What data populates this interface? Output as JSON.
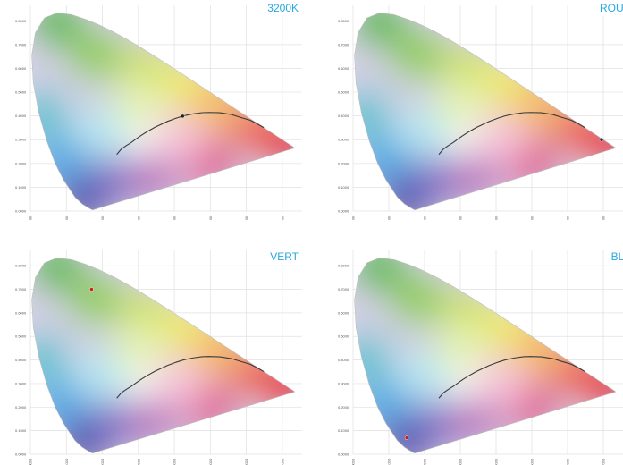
{
  "chart_data": [
    {
      "type": "scatter",
      "title": "3200K",
      "xlim": [
        0.0,
        0.75
      ],
      "ylim": [
        0.0,
        0.85
      ],
      "x_ticks": [
        "0.0000",
        "0.1000",
        "0.2000",
        "0.3000",
        "0.4000",
        "0.5000",
        "0.6000",
        "0.7000"
      ],
      "y_ticks": [
        "0.0000",
        "0.1000",
        "0.2000",
        "0.3000",
        "0.4000",
        "0.5000",
        "0.6000",
        "0.7000",
        "0.8000"
      ],
      "grid": true,
      "marker": {
        "x": 0.423,
        "y": 0.399,
        "color": "#222222"
      }
    },
    {
      "type": "scatter",
      "title": "ROUGE",
      "xlim": [
        0.0,
        0.75
      ],
      "ylim": [
        0.0,
        0.85
      ],
      "x_ticks": [
        "0.0000",
        "0.1000",
        "0.2000",
        "0.3000",
        "0.4000",
        "0.5000",
        "0.6000",
        "0.7000"
      ],
      "y_ticks": [
        "0.0000",
        "0.1000",
        "0.2000",
        "0.3000",
        "0.4000",
        "0.5000",
        "0.6000",
        "0.7000",
        "0.8000"
      ],
      "grid": true,
      "marker": {
        "x": 0.695,
        "y": 0.3,
        "color": "#222222"
      }
    },
    {
      "type": "scatter",
      "title": "VERT",
      "xlim": [
        0.0,
        0.75
      ],
      "ylim": [
        0.0,
        0.85
      ],
      "x_ticks": [
        "0.0000",
        "0.1000",
        "0.2000",
        "0.3000",
        "0.4000",
        "0.5000",
        "0.6000",
        "0.7000"
      ],
      "y_ticks": [
        "0.0000",
        "0.1000",
        "0.2000",
        "0.3000",
        "0.4000",
        "0.5000",
        "0.6000",
        "0.7000",
        "0.8000"
      ],
      "grid": true,
      "marker": {
        "x": 0.17,
        "y": 0.7,
        "color": "#d01c1c"
      }
    },
    {
      "type": "scatter",
      "title": "BLEU",
      "xlim": [
        0.0,
        0.75
      ],
      "ylim": [
        0.0,
        0.85
      ],
      "x_ticks": [
        "0.0000",
        "0.1000",
        "0.2000",
        "0.3000",
        "0.4000",
        "0.5000",
        "0.6000",
        "0.7000"
      ],
      "y_ticks": [
        "0.0000",
        "0.1000",
        "0.2000",
        "0.3000",
        "0.4000",
        "0.5000",
        "0.6000",
        "0.7000",
        "0.8000"
      ],
      "grid": true,
      "marker": {
        "x": 0.15,
        "y": 0.07,
        "color": "#d01c1c"
      }
    }
  ],
  "spectral_locus": [
    [
      0.1741,
      0.005
    ],
    [
      0.1738,
      0.0049
    ],
    [
      0.1733,
      0.0048
    ],
    [
      0.1726,
      0.0048
    ],
    [
      0.1714,
      0.0051
    ],
    [
      0.1689,
      0.0069
    ],
    [
      0.1644,
      0.0109
    ],
    [
      0.1566,
      0.0177
    ],
    [
      0.144,
      0.0297
    ],
    [
      0.1241,
      0.0578
    ],
    [
      0.0913,
      0.1327
    ],
    [
      0.0687,
      0.2007
    ],
    [
      0.0454,
      0.295
    ],
    [
      0.0235,
      0.4127
    ],
    [
      0.0082,
      0.5384
    ],
    [
      0.0039,
      0.6548
    ],
    [
      0.0139,
      0.7502
    ],
    [
      0.0389,
      0.812
    ],
    [
      0.0743,
      0.8338
    ],
    [
      0.1142,
      0.8262
    ],
    [
      0.1547,
      0.8059
    ],
    [
      0.1929,
      0.7816
    ],
    [
      0.2296,
      0.7543
    ],
    [
      0.2658,
      0.7243
    ],
    [
      0.3016,
      0.6923
    ],
    [
      0.3373,
      0.6589
    ],
    [
      0.3731,
      0.6245
    ],
    [
      0.4087,
      0.5896
    ],
    [
      0.4441,
      0.5547
    ],
    [
      0.4788,
      0.5202
    ],
    [
      0.5125,
      0.4866
    ],
    [
      0.5448,
      0.4544
    ],
    [
      0.5752,
      0.4242
    ],
    [
      0.6029,
      0.3965
    ],
    [
      0.627,
      0.3725
    ],
    [
      0.6482,
      0.3514
    ],
    [
      0.6658,
      0.334
    ],
    [
      0.6801,
      0.3197
    ],
    [
      0.6915,
      0.3083
    ],
    [
      0.7006,
      0.2993
    ],
    [
      0.7079,
      0.292
    ],
    [
      0.714,
      0.2859
    ],
    [
      0.719,
      0.2809
    ],
    [
      0.723,
      0.277
    ],
    [
      0.726,
      0.274
    ],
    [
      0.7283,
      0.2717
    ],
    [
      0.73,
      0.27
    ],
    [
      0.7347,
      0.2653
    ]
  ],
  "planckian_locus": [
    [
      0.6482,
      0.3512
    ],
    [
      0.6306,
      0.3667
    ],
    [
      0.6102,
      0.3824
    ],
    [
      0.5857,
      0.3931
    ],
    [
      0.5586,
      0.4059
    ],
    [
      0.5267,
      0.4133
    ],
    [
      0.497,
      0.4147
    ],
    [
      0.477,
      0.4137
    ],
    [
      0.4526,
      0.4089
    ],
    [
      0.4369,
      0.4041
    ],
    [
      0.4231,
      0.3991
    ],
    [
      0.4053,
      0.3907
    ],
    [
      0.3805,
      0.3768
    ],
    [
      0.3451,
      0.3516
    ],
    [
      0.3221,
      0.3318
    ],
    [
      0.3064,
      0.3166
    ],
    [
      0.2952,
      0.3048
    ],
    [
      0.28,
      0.288
    ],
    [
      0.265,
      0.274
    ],
    [
      0.2524,
      0.2603
    ],
    [
      0.24,
      0.238
    ]
  ]
}
